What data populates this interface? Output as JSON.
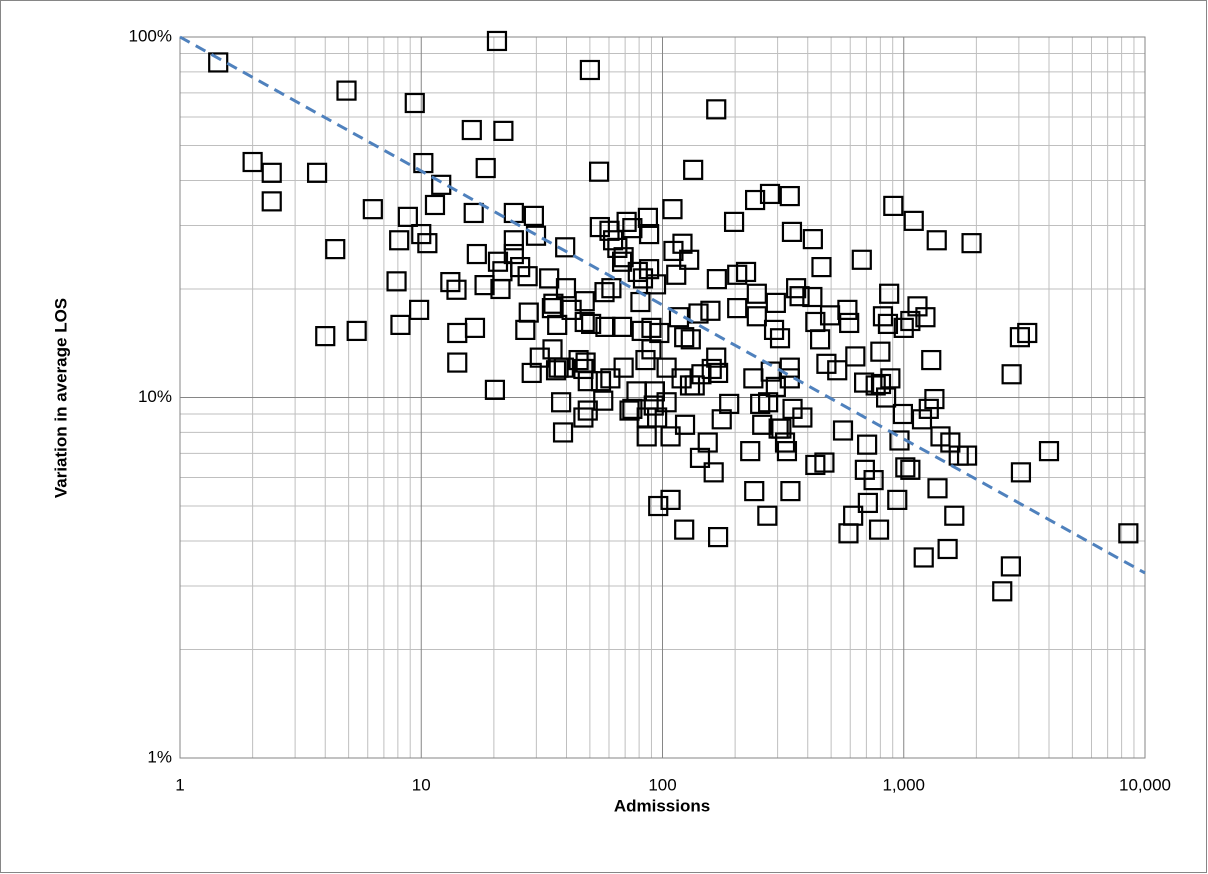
{
  "chart_data": {
    "type": "scatter",
    "xlabel": "Admissions",
    "ylabel": "Variation in average LOS",
    "xscale": "log",
    "yscale": "log",
    "grid": true,
    "minor_grid": true,
    "xlim": [
      1,
      10000
    ],
    "xticks": [
      1,
      10,
      100,
      {
        "value": 1000,
        "label": "1,000"
      },
      {
        "value": 10000,
        "label": "10,000"
      }
    ],
    "ylim": [
      1,
      100
    ],
    "yticks": [
      {
        "value": 1,
        "label": "1%"
      },
      {
        "value": 10,
        "label": "10%"
      },
      {
        "value": 100,
        "label": "100%"
      }
    ],
    "series": [
      {
        "color": "#000000",
        "marker": "square",
        "x": [
          1.44,
          2.0,
          2.4,
          2.4,
          3.7,
          4.9,
          4.4,
          4.0,
          5.4,
          6.3,
          7.9,
          8.1,
          8.2,
          8.8,
          9.4,
          9.8,
          10,
          10.2,
          10.6,
          11.4,
          12.1,
          13.2,
          14,
          14.1,
          14.1,
          16.2,
          16.5,
          16.7,
          17,
          18.3,
          18.5,
          20.2,
          20.6,
          20.8,
          21.3,
          21.9,
          21.7,
          24.2,
          24.2,
          24.2,
          25.7,
          27,
          27.6,
          27.9,
          28.7,
          29.3,
          29.9,
          31,
          33.9,
          34.8,
          35,
          36.6,
          37.1,
          38,
          38.7,
          39,
          39.5,
          39.8,
          42,
          35.3,
          36.2,
          44.9,
          47,
          47,
          49,
          48,
          47.6,
          47.6,
          50.6,
          49,
          50,
          54.6,
          55,
          55.6,
          56.8,
          57.5,
          58,
          60.3,
          61.4,
          62.4,
          60.8,
          65,
          68,
          68,
          69,
          69,
          71,
          73,
          75,
          75,
          78,
          79,
          81,
          82,
          83,
          85,
          86,
          86,
          87,
          88,
          88,
          90,
          90,
          92,
          93,
          94,
          96,
          95,
          97,
          104,
          104,
          108,
          108,
          110,
          111,
          114,
          117,
          120,
          121,
          123,
          123,
          124,
          130,
          129,
          131,
          134,
          136,
          141,
          143,
          145,
          154,
          158,
          160,
          163,
          167,
          167,
          168,
          170,
          176,
          170,
          189,
          198,
          204,
          204,
          222,
          231,
          238,
          240,
          242,
          246,
          246,
          254,
          259,
          272,
          274,
          279,
          281,
          290,
          295,
          295,
          303,
          307,
          311,
          322,
          328,
          337,
          337,
          339,
          344,
          337,
          346,
          358,
          370,
          380,
          418,
          420,
          430,
          430,
          450,
          456,
          469,
          478,
          495,
          530,
          560,
          584,
          590,
          594,
          617,
          630,
          670,
          685,
          690,
          705,
          710,
          750,
          765,
          790,
          800,
          805,
          820,
          845,
          860,
          870,
          880,
          905,
          940,
          960,
          992,
          1000,
          1015,
          1065,
          1065,
          1100,
          1140,
          1190,
          1210,
          1230,
          1270,
          1300,
          1340,
          1370,
          1380,
          1420,
          1520,
          1560,
          1620,
          1690,
          1830,
          1910,
          2560,
          2780,
          2800,
          3030,
          3060,
          3250,
          4000,
          8530
        ],
        "values": [
          85,
          45,
          42,
          35,
          42,
          71,
          25.8,
          14.8,
          15.3,
          33.3,
          21,
          27.3,
          15.9,
          31.7,
          65.6,
          17.5,
          28.4,
          44.7,
          26.8,
          34.2,
          38.9,
          20.9,
          19.9,
          15.1,
          12.5,
          55.2,
          32.5,
          15.6,
          25,
          20.5,
          43.3,
          10.5,
          97.5,
          23.8,
          20,
          54.9,
          22.4,
          32.5,
          27.3,
          25,
          23,
          15.4,
          21.7,
          17.2,
          11.7,
          31.9,
          28.1,
          12.9,
          21.4,
          17.7,
          13.6,
          15.9,
          12.1,
          9.7,
          8.0,
          12.1,
          26.1,
          20.1,
          17.5,
          18.2,
          11.9,
          12.7,
          12.0,
          8.8,
          9.2,
          12.5,
          16.2,
          18.5,
          16.0,
          11.1,
          81,
          42.3,
          29.7,
          11.1,
          9.8,
          19.6,
          15.7,
          29.0,
          20.1,
          27.3,
          11.3,
          26.0,
          23.8,
          15.7,
          24.5,
          12.1,
          30.7,
          9.2,
          29.5,
          9.3,
          10.4,
          22.3,
          18.4,
          15.3,
          21.4,
          12.7,
          7.8,
          8.8,
          31.5,
          28.4,
          22.7,
          15.6,
          13.6,
          9.5,
          10.4,
          20.6,
          5.0,
          8.8,
          15.1,
          9.7,
          12.1,
          5.2,
          7.8,
          33.3,
          25.5,
          21.9,
          16.7,
          11.3,
          26.7,
          4.3,
          14.7,
          8.4,
          10.8,
          24.1,
          14.5,
          42.8,
          10.8,
          17.1,
          6.8,
          11.6,
          7.5,
          17.4,
          12.0,
          6.2,
          12.9,
          63,
          21.3,
          4.1,
          8.7,
          11.7,
          9.6,
          30.7,
          17.7,
          21.9,
          22.3,
          7.1,
          11.3,
          5.5,
          35.3,
          19.4,
          16.8,
          9.6,
          8.4,
          4.7,
          9.7,
          36.7,
          11.8,
          15.4,
          10.7,
          18.3,
          8.2,
          14.6,
          8.2,
          7.5,
          7.1,
          12.1,
          11.3,
          5.5,
          28.8,
          36.2,
          9.3,
          20.1,
          19.1,
          8.8,
          19.0,
          27.5,
          16.2,
          6.5,
          14.5,
          23.0,
          6.6,
          12.4,
          16.9,
          11.9,
          8.1,
          17.5,
          4.2,
          16.1,
          4.7,
          13.0,
          24.1,
          11.0,
          6.3,
          7.4,
          5.1,
          5.9,
          10.8,
          4.3,
          13.4,
          10.9,
          16.8,
          10.0,
          16.0,
          19.4,
          11.3,
          34.0,
          5.2,
          7.6,
          9.0,
          15.6,
          6.4,
          6.3,
          16.3,
          30.9,
          17.9,
          8.7,
          3.6,
          16.7,
          9.3,
          12.7,
          9.9,
          27.3,
          5.6,
          7.8,
          3.8,
          7.5,
          4.7,
          6.9,
          6.9,
          26.8,
          2.9,
          3.4,
          11.6,
          14.7,
          6.2,
          15.1,
          7.1,
          4.2
        ]
      },
      {
        "color": "#4f81bd",
        "style": "dashed",
        "x": [
          1,
          10000
        ],
        "values": [
          100,
          3.26
        ]
      }
    ]
  }
}
